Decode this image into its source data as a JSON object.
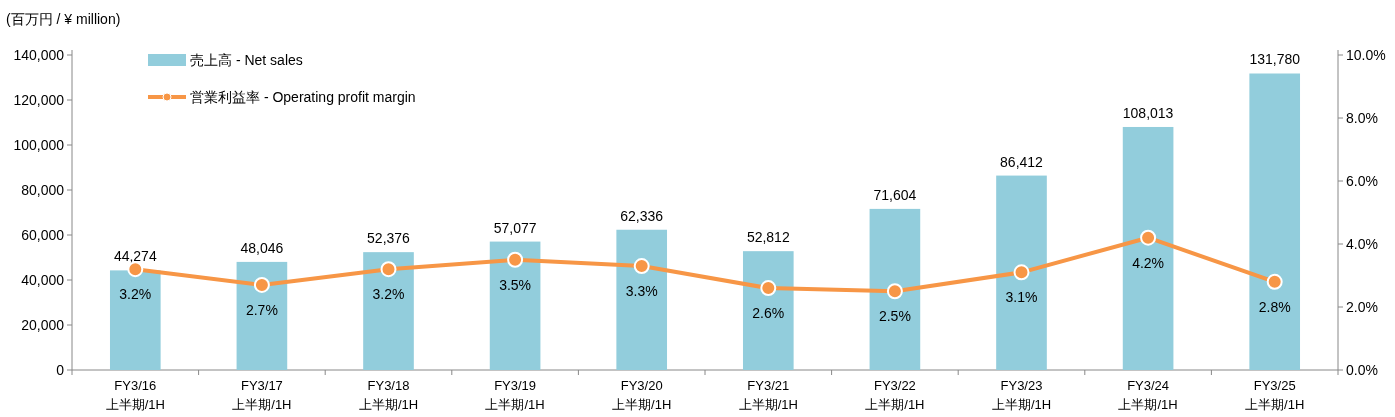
{
  "chart_data": {
    "type": "bar",
    "ylabel": "(百万円 / ¥ million)",
    "categories": [
      "FY3/16\n上半期/1H",
      "FY3/17\n上半期/1H",
      "FY3/18\n上半期/1H",
      "FY3/19\n上半期/1H",
      "FY3/20\n上半期/1H",
      "FY3/21\n上半期/1H",
      "FY3/22\n上半期/1H",
      "FY3/23\n上半期/1H",
      "FY3/24\n上半期/1H",
      "FY3/25\n上半期/1H"
    ],
    "series": [
      {
        "name": "売上高 - Net sales",
        "color": "#92cddc",
        "values": [
          44274,
          48046,
          52376,
          57077,
          62336,
          52812,
          71604,
          86412,
          108013,
          131780
        ],
        "value_labels": [
          "44,274",
          "48,046",
          "52,376",
          "57,077",
          "62,336",
          "52,812",
          "71,604",
          "86,412",
          "108,013",
          "131,780"
        ]
      },
      {
        "name": "営業利益率 - Operating  profit margin",
        "type": "line",
        "axis": "y2",
        "color": "#f79646",
        "marker": "circle",
        "values": [
          3.2,
          2.7,
          3.2,
          3.5,
          3.3,
          2.6,
          2.5,
          3.1,
          4.2,
          2.8
        ],
        "value_labels": [
          "3.2%",
          "2.7%",
          "3.2%",
          "3.5%",
          "3.3%",
          "2.6%",
          "2.5%",
          "3.1%",
          "4.2%",
          "2.8%"
        ]
      }
    ],
    "ylim": [
      0,
      140000
    ],
    "yticks": [
      0,
      {
        "value": 20000,
        "label": "20,000"
      },
      {
        "value": 40000,
        "label": "40,000"
      },
      {
        "value": 60000,
        "label": "60,000"
      },
      {
        "value": 80000,
        "label": "80,000"
      },
      {
        "value": 100000,
        "label": "100,000"
      },
      {
        "value": 120000,
        "label": "120,000"
      },
      {
        "value": 140000,
        "label": "140,000"
      }
    ],
    "y2lim": [
      0,
      10
    ],
    "y2ticks": [
      {
        "value": 0,
        "label": "0.0%"
      },
      {
        "value": 2,
        "label": "2.0%"
      },
      {
        "value": 4,
        "label": "4.0%"
      },
      {
        "value": 6,
        "label": "6.0%"
      },
      {
        "value": 8,
        "label": "8.0%"
      },
      {
        "value": 10,
        "label": "10.0%"
      }
    ],
    "legend": "top left",
    "grid": false
  }
}
